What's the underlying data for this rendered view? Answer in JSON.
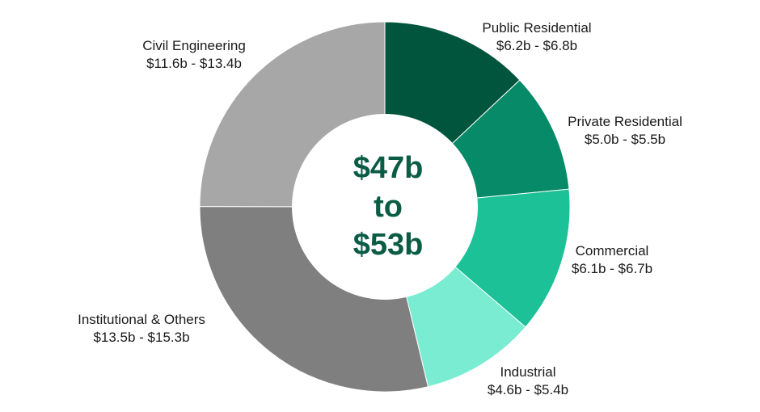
{
  "chart_data": {
    "type": "pie",
    "variant": "donut",
    "center_text": [
      "$47b",
      "to",
      "$53b"
    ],
    "legend": "none",
    "slices": [
      {
        "name": "Public Residential",
        "range_label": "$6.2b - $6.8b",
        "low": 6.2,
        "high": 6.8,
        "color": "#02553d"
      },
      {
        "name": "Private Residential",
        "range_label": "$5.0b - $5.5b",
        "low": 5.0,
        "high": 5.5,
        "color": "#078a68"
      },
      {
        "name": "Commercial",
        "range_label": "$6.1b - $6.7b",
        "low": 6.1,
        "high": 6.7,
        "color": "#1cc197"
      },
      {
        "name": "Industrial",
        "range_label": "$4.6b - $5.4b",
        "low": 4.6,
        "high": 5.4,
        "color": "#79ecd2"
      },
      {
        "name": "Institutional & Others",
        "range_label": "$13.5b - $15.3b",
        "low": 13.5,
        "high": 15.3,
        "color": "#7f7f7f"
      },
      {
        "name": "Civil Engineering",
        "range_label": "$11.6b - $13.4b",
        "low": 11.6,
        "high": 13.4,
        "color": "#a7a7a7"
      }
    ]
  }
}
